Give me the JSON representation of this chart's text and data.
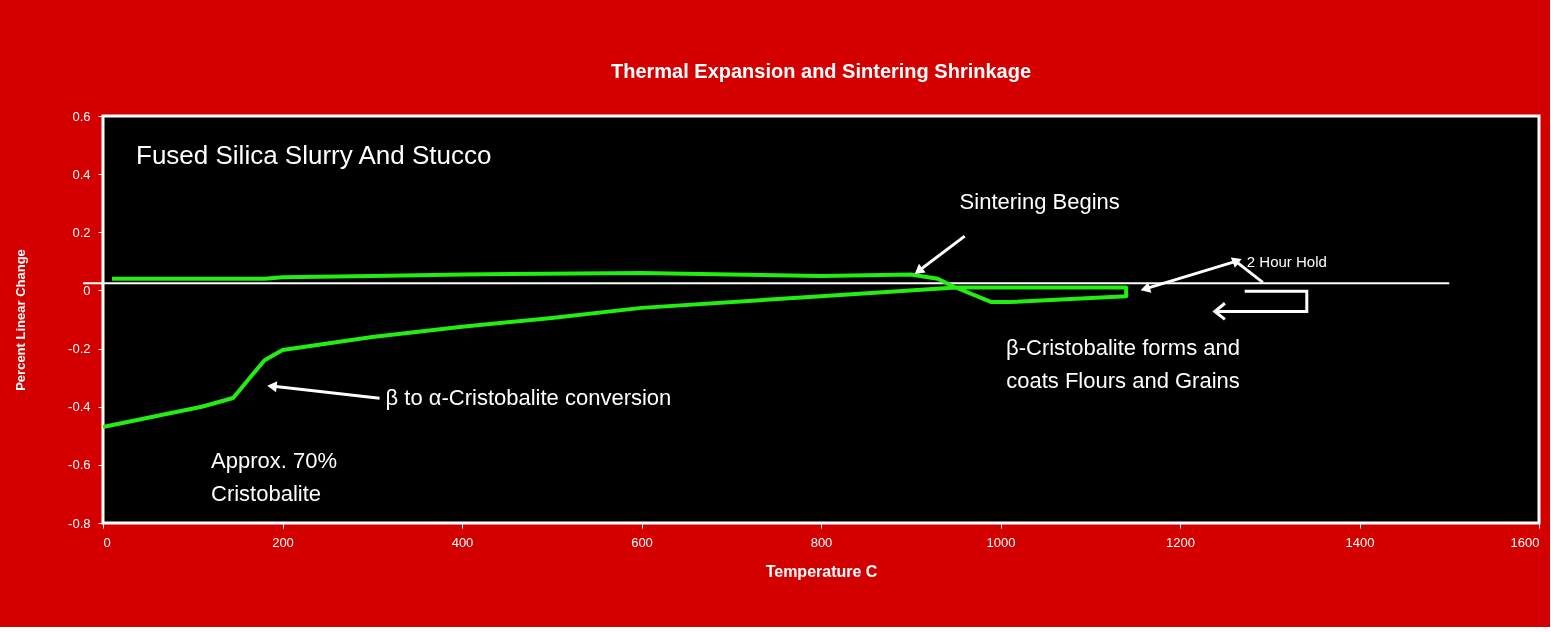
{
  "chart_data": {
    "type": "line",
    "title": "Thermal Expansion and Sintering Shrinkage",
    "xlabel": "Temperature C",
    "ylabel": "Percent Linear Change",
    "series": [
      {
        "color": "#22ee11",
        "x": [
          10,
          180,
          200,
          300,
          400,
          600,
          700,
          800,
          900,
          930,
          950,
          990,
          1010,
          1140,
          1140,
          950,
          800,
          600,
          500,
          400,
          300,
          200,
          180,
          145,
          110,
          0
        ],
        "values": [
          0.04,
          0.04,
          0.045,
          0.05,
          0.055,
          0.06,
          0.055,
          0.05,
          0.055,
          0.04,
          0.01,
          -0.04,
          -0.04,
          -0.02,
          0.01,
          0.01,
          -0.02,
          -0.06,
          -0.095,
          -0.125,
          -0.16,
          -0.205,
          -0.24,
          -0.37,
          -0.4,
          -0.47
        ]
      }
    ],
    "xlim": [
      0,
      1600
    ],
    "xticks": [
      0,
      200,
      400,
      600,
      800,
      1000,
      1200,
      1400,
      1600
    ],
    "ylim": [
      -0.8,
      0.6
    ],
    "yticks": [
      -0.8,
      -0.6,
      -0.4,
      -0.2,
      0,
      0.2,
      0.4,
      0.6
    ],
    "ref_lines": [
      {
        "axis": "y",
        "value": 0.025,
        "color": "#ffffff"
      }
    ],
    "annotations": [
      "Fused Silica Slurry And Stucco",
      {
        "text": "Sintering Begins",
        "x": 910,
        "y": 0.07
      },
      {
        "text": "β to α-Cristobalite conversion",
        "x": 190,
        "y": -0.33
      },
      "Approx. 70%\nCristobalite",
      {
        "text": "2 Hour Hold",
        "x": 1163,
        "y": 0.007
      },
      "β-Cristobalite forms and\ncoats Flours and Grains"
    ],
    "grid": false,
    "legend": false
  }
}
